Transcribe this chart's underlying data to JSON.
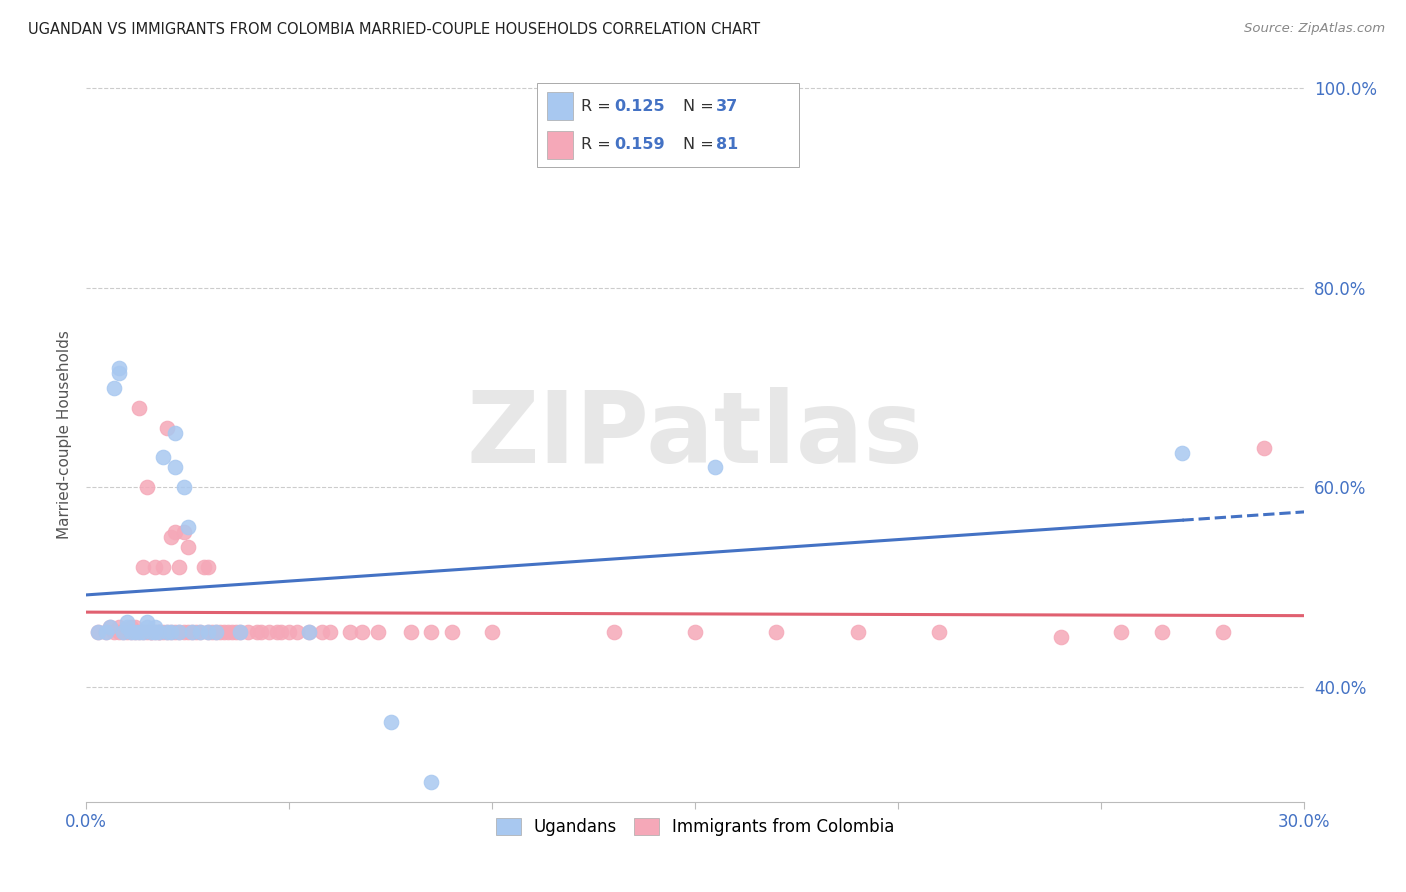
{
  "title": "UGANDAN VS IMMIGRANTS FROM COLOMBIA MARRIED-COUPLE HOUSEHOLDS CORRELATION CHART",
  "source": "Source: ZipAtlas.com",
  "ylabel": "Married-couple Households",
  "xlim": [
    0.0,
    0.3
  ],
  "ylim": [
    0.285,
    1.02
  ],
  "xticks": [
    0.0,
    0.05,
    0.1,
    0.15,
    0.2,
    0.25,
    0.3
  ],
  "xticklabels": [
    "0.0%",
    "",
    "",
    "",
    "",
    "",
    "30.0%"
  ],
  "yticks": [
    0.4,
    0.6,
    0.8,
    1.0
  ],
  "yticklabels": [
    "40.0%",
    "60.0%",
    "80.0%",
    "100.0%"
  ],
  "ugandan_color": "#a8c8f0",
  "colombia_color": "#f5a8b8",
  "trend_blue": "#4472c4",
  "trend_pink": "#e06070",
  "watermark": "ZIPatlas",
  "ugandan_x": [
    0.003,
    0.005,
    0.006,
    0.007,
    0.008,
    0.008,
    0.009,
    0.01,
    0.01,
    0.011,
    0.012,
    0.013,
    0.014,
    0.015,
    0.015,
    0.016,
    0.017,
    0.017,
    0.018,
    0.019,
    0.02,
    0.021,
    0.022,
    0.022,
    0.023,
    0.024,
    0.025,
    0.026,
    0.028,
    0.03,
    0.032,
    0.038,
    0.055,
    0.075,
    0.085,
    0.155,
    0.27
  ],
  "ugandan_y": [
    0.455,
    0.455,
    0.46,
    0.7,
    0.72,
    0.715,
    0.455,
    0.46,
    0.465,
    0.455,
    0.455,
    0.455,
    0.455,
    0.46,
    0.465,
    0.455,
    0.455,
    0.46,
    0.455,
    0.63,
    0.455,
    0.455,
    0.62,
    0.655,
    0.455,
    0.6,
    0.56,
    0.455,
    0.455,
    0.455,
    0.455,
    0.455,
    0.455,
    0.365,
    0.305,
    0.62,
    0.635
  ],
  "colombia_x": [
    0.003,
    0.005,
    0.006,
    0.007,
    0.008,
    0.008,
    0.009,
    0.01,
    0.011,
    0.011,
    0.012,
    0.012,
    0.013,
    0.013,
    0.014,
    0.014,
    0.015,
    0.015,
    0.016,
    0.016,
    0.017,
    0.017,
    0.018,
    0.018,
    0.019,
    0.019,
    0.02,
    0.02,
    0.021,
    0.021,
    0.022,
    0.022,
    0.023,
    0.023,
    0.024,
    0.024,
    0.025,
    0.025,
    0.026,
    0.027,
    0.028,
    0.029,
    0.03,
    0.03,
    0.031,
    0.032,
    0.033,
    0.034,
    0.035,
    0.036,
    0.037,
    0.038,
    0.04,
    0.042,
    0.043,
    0.045,
    0.047,
    0.048,
    0.05,
    0.052,
    0.055,
    0.058,
    0.06,
    0.065,
    0.068,
    0.072,
    0.08,
    0.085,
    0.09,
    0.1,
    0.13,
    0.15,
    0.17,
    0.19,
    0.21,
    0.24,
    0.255,
    0.265,
    0.28,
    0.29
  ],
  "colombia_y": [
    0.455,
    0.455,
    0.46,
    0.455,
    0.46,
    0.455,
    0.455,
    0.455,
    0.455,
    0.46,
    0.455,
    0.46,
    0.455,
    0.68,
    0.455,
    0.52,
    0.455,
    0.6,
    0.455,
    0.455,
    0.455,
    0.52,
    0.455,
    0.455,
    0.455,
    0.52,
    0.455,
    0.66,
    0.455,
    0.55,
    0.455,
    0.555,
    0.455,
    0.52,
    0.455,
    0.555,
    0.455,
    0.54,
    0.455,
    0.455,
    0.455,
    0.52,
    0.455,
    0.52,
    0.455,
    0.455,
    0.455,
    0.455,
    0.455,
    0.455,
    0.455,
    0.455,
    0.455,
    0.455,
    0.455,
    0.455,
    0.455,
    0.455,
    0.455,
    0.455,
    0.455,
    0.455,
    0.455,
    0.455,
    0.455,
    0.455,
    0.455,
    0.455,
    0.455,
    0.455,
    0.455,
    0.455,
    0.455,
    0.455,
    0.455,
    0.45,
    0.455,
    0.455,
    0.455,
    0.64
  ]
}
